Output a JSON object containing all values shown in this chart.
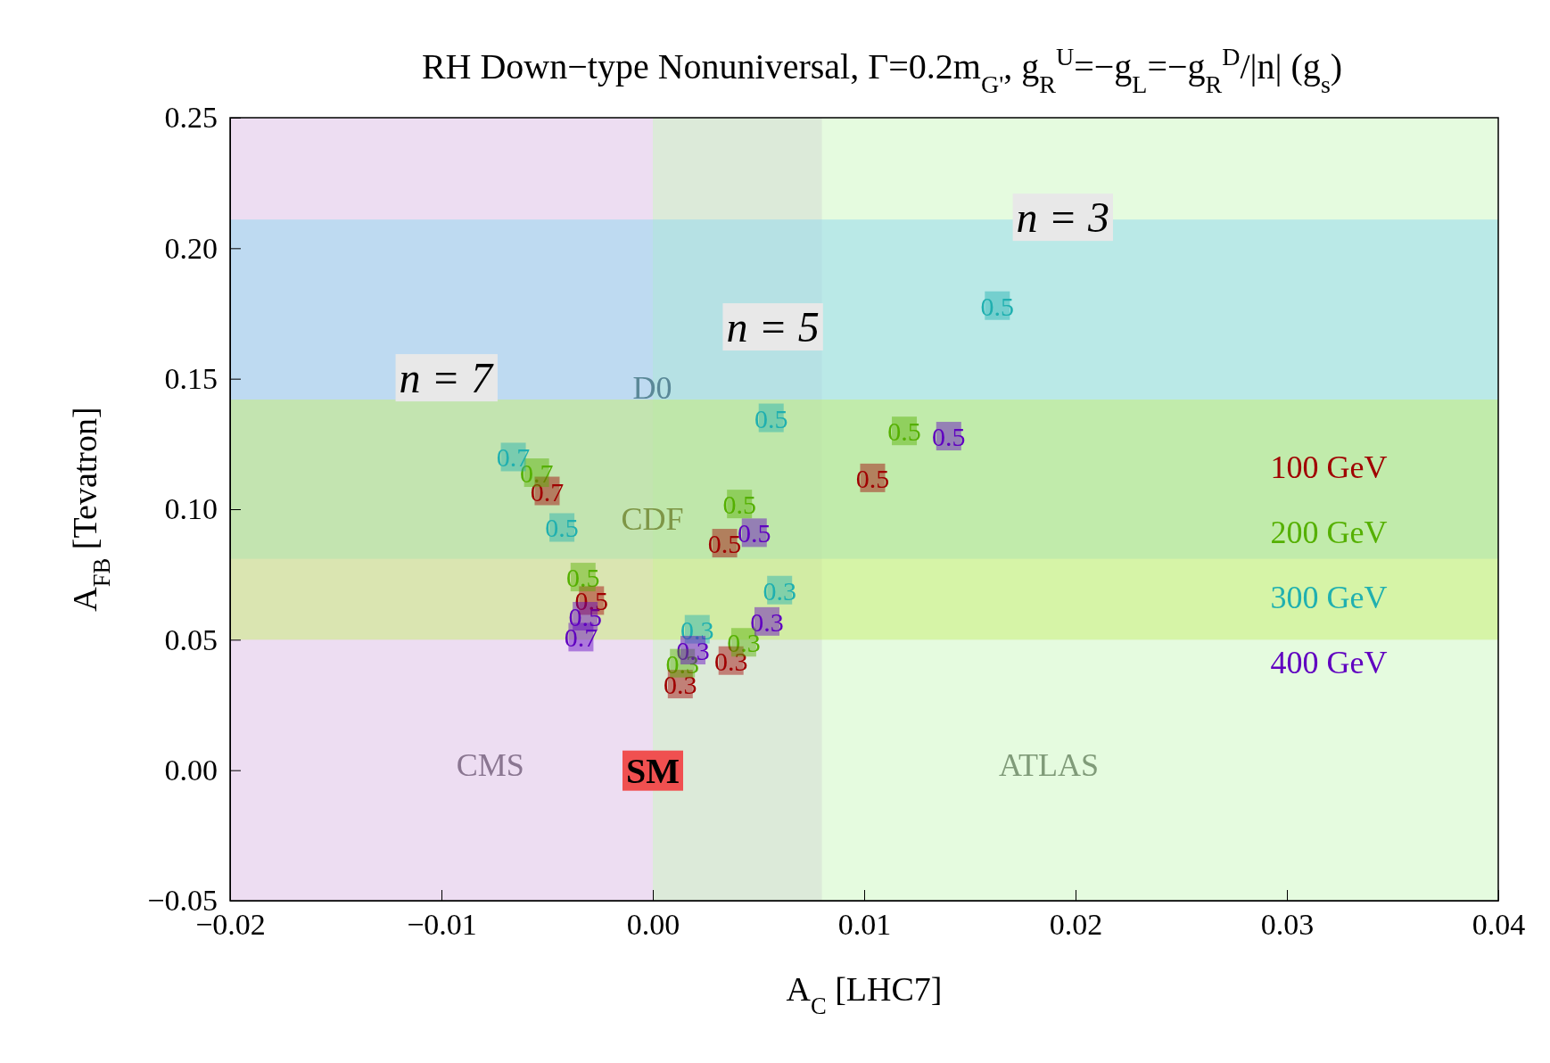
{
  "chart_data": {
    "type": "scatter",
    "title": "RH Down−type Nonuniversal, Γ=0.2m$_{G'}$, g$_{R}$$^{U}$=−g$_{L}$=−g$_{R}$$^{D}$/|n| (g$_{s}$)",
    "xlabel": "A$_{C}$ [LHC7]",
    "ylabel": "A$_{FB}$ [Tevatron]",
    "xlim": [
      -0.02,
      0.04
    ],
    "ylim": [
      -0.05,
      0.25
    ],
    "xticks": [
      {
        "value": -0.02,
        "label": "−0.02"
      },
      {
        "value": -0.01,
        "label": "−0.01"
      },
      {
        "value": 0,
        "label": "0.00"
      },
      {
        "value": 0.01,
        "label": "0.01"
      },
      {
        "value": 0.02,
        "label": "0.02"
      },
      {
        "value": 0.03,
        "label": "0.03"
      },
      {
        "value": 0.04,
        "label": "0.04"
      }
    ],
    "yticks": [
      {
        "value": -0.05,
        "label": "−0.05"
      },
      {
        "value": 0,
        "label": "0.00"
      },
      {
        "value": 0.05,
        "label": "0.05"
      },
      {
        "value": 0.1,
        "label": "0.10"
      },
      {
        "value": 0.15,
        "label": "0.15"
      },
      {
        "value": 0.2,
        "label": "0.20"
      },
      {
        "value": 0.25,
        "label": "0.25"
      }
    ],
    "marker": "square",
    "legend": "right",
    "bands": [
      {
        "axis": "x",
        "from": -0.02,
        "to": 0.008,
        "label": "CMS",
        "color": "#dcbce6"
      },
      {
        "axis": "x",
        "from": 0,
        "to": 0.04,
        "label": "ATLAS",
        "color": "#ccf7c0"
      },
      {
        "axis": "y",
        "from": 0.081,
        "to": 0.211,
        "label": "D0",
        "color": "#8fd8f0"
      },
      {
        "axis": "y",
        "from": 0.05,
        "to": 0.142,
        "label": "CDF",
        "color": "#c8ee70"
      }
    ],
    "annotations": [
      "n = 7",
      "n = 5",
      {
        "text": "n = 3",
        "x": 0.0194,
        "y": 0.211
      },
      {
        "text": "SM",
        "x": 0,
        "y": 0
      },
      {
        "text": "0.7",
        "x": -0.005,
        "y": 0.107
      },
      {
        "text": "0.5",
        "x": -0.0029,
        "y": 0.065
      },
      {
        "text": "0.3",
        "x": 0.0013,
        "y": 0.033
      },
      {
        "text": "0.5",
        "x": 0.0034,
        "y": 0.087
      },
      {
        "text": "0.3",
        "x": 0.0037,
        "y": 0.042
      },
      {
        "text": "0.5",
        "x": 0.0104,
        "y": 0.112
      },
      {
        "text": "0.7",
        "x": -0.0055,
        "y": 0.114
      },
      {
        "text": "0.5",
        "x": -0.0033,
        "y": 0.074
      },
      {
        "text": "0.3",
        "x": 0.0014,
        "y": 0.041
      },
      {
        "text": "0.5",
        "x": 0.0041,
        "y": 0.102
      },
      {
        "text": "0.3",
        "x": 0.0043,
        "y": 0.049
      },
      {
        "text": "0.5",
        "x": 0.0119,
        "y": 0.13
      },
      {
        "text": "0.7",
        "x": -0.0066,
        "y": 0.12
      },
      {
        "text": "0.5",
        "x": -0.0043,
        "y": 0.093
      },
      {
        "text": "0.3",
        "x": 0.0021,
        "y": 0.054
      },
      {
        "text": "0.5",
        "x": 0.0056,
        "y": 0.135
      },
      {
        "text": "0.3",
        "x": 0.006,
        "y": 0.069
      },
      {
        "text": "0.5",
        "x": 0.0163,
        "y": 0.178
      },
      {
        "text": "0.7",
        "x": -0.0034,
        "y": 0.051
      },
      {
        "text": "0.5",
        "x": -0.0032,
        "y": 0.059
      },
      {
        "text": "0.3",
        "x": 0.0019,
        "y": 0.046
      },
      {
        "text": "0.5",
        "x": 0.0048,
        "y": 0.091
      },
      {
        "text": "0.3",
        "x": 0.0054,
        "y": 0.057
      },
      {
        "text": "0.5",
        "x": 0.014,
        "y": 0.128
      }
    ],
    "series": [
      {
        "name": "100 GeV",
        "color": "#a00000",
        "x": [
          -0.005,
          -0.0029,
          0.0013,
          0.0034,
          0.0037,
          0.0104
        ],
        "values": [
          0.107,
          0.065,
          0.033,
          0.087,
          0.042,
          0.112
        ]
      },
      {
        "name": "200 GeV",
        "color": "#55b000",
        "x": [
          -0.0055,
          -0.0033,
          0.0014,
          0.0041,
          0.0043,
          0.0119
        ],
        "values": [
          0.114,
          0.074,
          0.041,
          0.102,
          0.049,
          0.13
        ]
      },
      {
        "name": "300 GeV",
        "color": "#20b0b0",
        "x": [
          -0.0066,
          -0.0043,
          0.0021,
          0.0056,
          0.006,
          0.0163
        ],
        "values": [
          0.12,
          0.093,
          0.054,
          0.135,
          0.069,
          0.178
        ]
      },
      {
        "name": "400 GeV",
        "color": "#6000c0",
        "x": [
          -0.0034,
          -0.0032,
          0.0019,
          0.0048,
          0.0054,
          0.014
        ],
        "values": [
          0.051,
          0.059,
          0.046,
          0.091,
          0.057,
          0.128
        ]
      }
    ]
  }
}
